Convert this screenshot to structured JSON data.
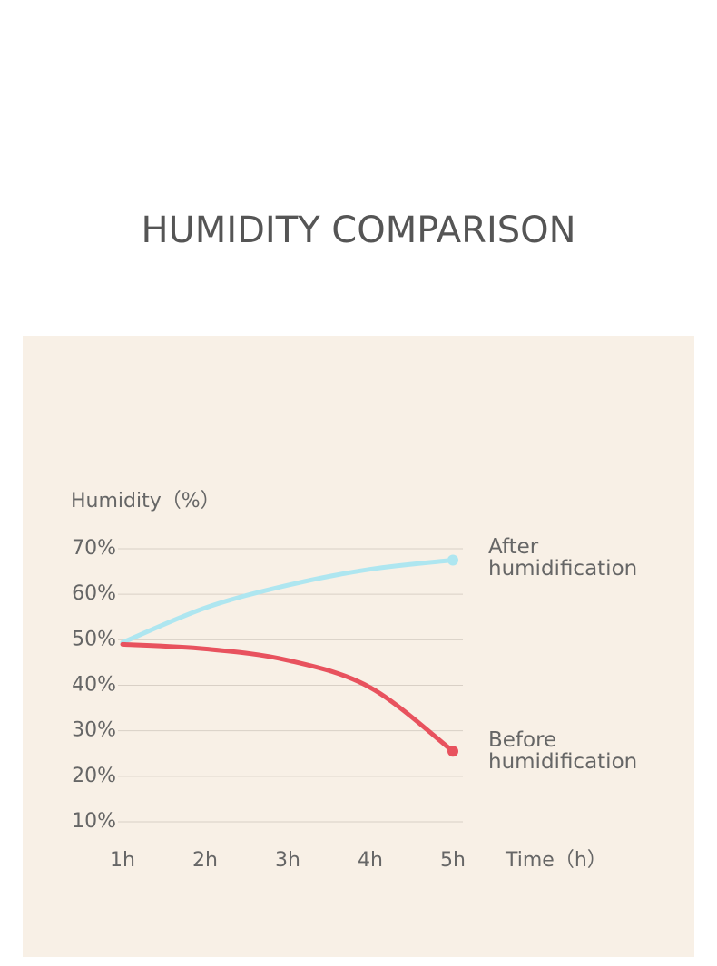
{
  "chart_data": {
    "type": "line",
    "title": "HUMIDITY COMPARISON",
    "y_label": "Humidity（%）",
    "x_label": "Time（h）",
    "categories": [
      "1h",
      "2h",
      "3h",
      "4h",
      "5h"
    ],
    "series": [
      {
        "name": "After humidification",
        "color": "#aee6f0",
        "values": [
          49.4,
          57,
          62,
          65.5,
          67.5
        ]
      },
      {
        "name": "Before humidification",
        "color": "#e8525e",
        "values": [
          49,
          48,
          45.5,
          39.5,
          25.5
        ]
      }
    ],
    "ylim": [
      10,
      70
    ],
    "yticks": [
      {
        "value": 10,
        "label": "10%"
      },
      {
        "value": 20,
        "label": "20%"
      },
      {
        "value": 30,
        "label": "30%"
      },
      {
        "value": 40,
        "label": "40%"
      },
      {
        "value": 50,
        "label": "50%"
      },
      {
        "value": 60,
        "label": "60%"
      },
      {
        "value": 70,
        "label": "70%"
      }
    ],
    "grid": true
  }
}
